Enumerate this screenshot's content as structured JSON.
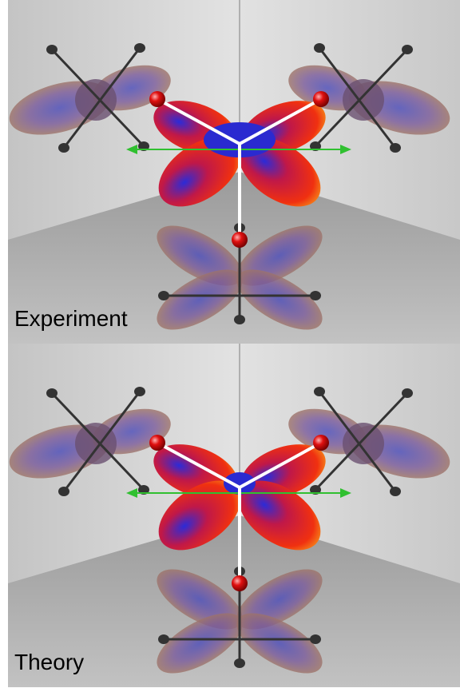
{
  "panels": [
    {
      "label": "Experiment"
    },
    {
      "label": "Theory"
    }
  ]
}
